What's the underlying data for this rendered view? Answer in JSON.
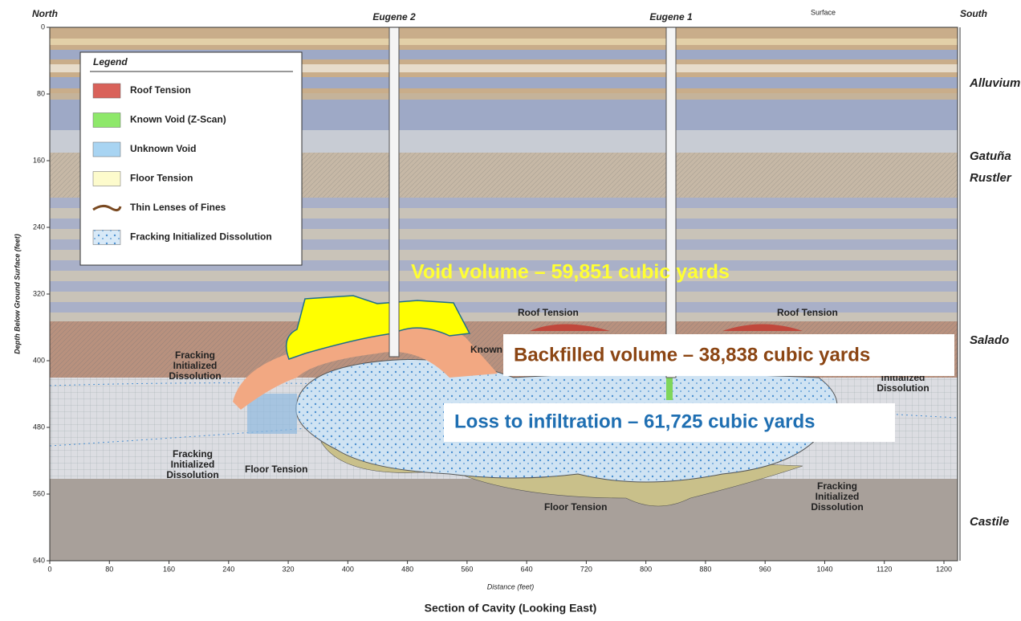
{
  "header": {
    "north": "North",
    "south": "South",
    "surface": "Surface"
  },
  "wells": [
    {
      "label": "Eugene 2"
    },
    {
      "label": "Eugene 1"
    }
  ],
  "formations": [
    "Alluvium",
    "Gatuña",
    "Rustler",
    "Salado",
    "Castile"
  ],
  "axes": {
    "y_label": "Depth Below Ground Surface (feet)",
    "x_label": "Distance (feet)",
    "xlim": [
      0,
      1200
    ],
    "ylim": [
      0,
      640
    ],
    "xticks": [
      0,
      80,
      160,
      240,
      320,
      400,
      480,
      560,
      640,
      720,
      800,
      880,
      960,
      1040,
      1120,
      1200
    ],
    "yticks": [
      0,
      80,
      160,
      240,
      320,
      400,
      480,
      560,
      640
    ]
  },
  "legend": {
    "title": "Legend",
    "items": [
      "Roof Tension",
      "Known Void (Z-Scan)",
      "Unknown Void",
      "Floor Tension",
      "Thin Lenses of Fines",
      "Fracking Initialized Dissolution"
    ]
  },
  "labels": {
    "roof_tension": "Roof Tension",
    "floor_tension": "Floor Tension",
    "known_void": "Known Void",
    "fracking": [
      "Fracking",
      "Initialized",
      "Dissolution"
    ],
    "fracking_partial": [
      "Initialized",
      "Dissolution"
    ]
  },
  "annotations": {
    "void": "Void volume – 59,851 cubic yards",
    "backfill": "Backfilled volume – 38,838 cubic yards",
    "loss": "Loss to infiltration – 61,725 cubic yards"
  },
  "caption": "Section of Cavity (Looking East)"
}
